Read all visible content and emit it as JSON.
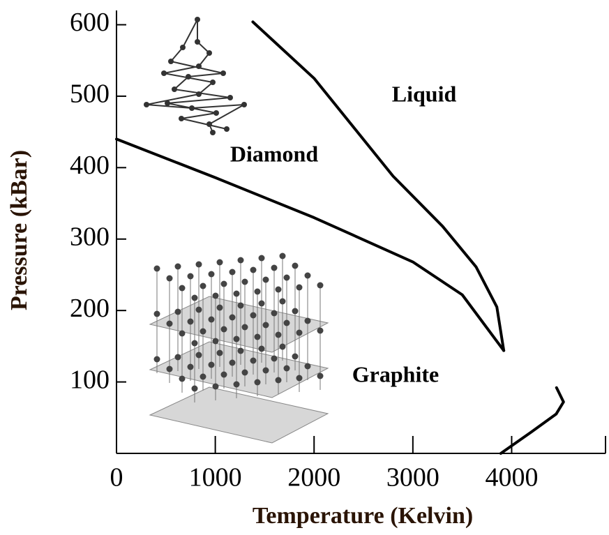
{
  "chart_data": {
    "type": "line",
    "xlabel": "Temperature (Kelvin)",
    "ylabel": "Pressure (kBar)",
    "xlim": [
      0,
      4950
    ],
    "ylim": [
      0,
      620
    ],
    "xticks": [
      0,
      1000,
      2000,
      3000,
      4000
    ],
    "yticks": [
      100,
      200,
      300,
      400,
      500,
      600
    ],
    "annotations": [
      "Liquid",
      "Diamond",
      "Graphite"
    ],
    "series": [
      {
        "color": "#000000",
        "x": [
          0,
          1000,
          2000,
          3000,
          3500,
          3920
        ],
        "values": [
          440,
          386,
          330,
          268,
          222,
          144
        ]
      },
      {
        "color": "#000000",
        "x": [
          1380,
          2000,
          2800,
          3300,
          3640,
          3850,
          3920
        ],
        "values": [
          604,
          525,
          388,
          318,
          261,
          205,
          144
        ]
      },
      {
        "color": "#000000",
        "x": [
          3890,
          4200,
          4450,
          4525,
          4454
        ],
        "values": [
          0,
          30,
          55,
          72,
          92
        ]
      }
    ]
  }
}
